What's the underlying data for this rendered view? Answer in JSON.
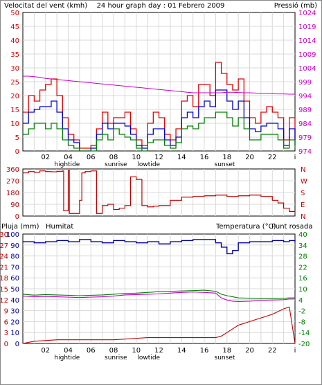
{
  "colors": {
    "wind_gust": "#e00000",
    "wind_avg": "#0000c8",
    "wind_min": "#008000",
    "pressure": "#c800c8",
    "rain": "#c00000",
    "humidity": "#0000a0",
    "temperature": "#008000",
    "dewpoint": "#c800c8",
    "grid": "#d8d8d8",
    "axis": "#000000"
  },
  "header": {
    "left_title": "Velocitat del vent (kmh)",
    "center_title": "24 hour graph day : 01 Febrero 2009",
    "right_title": "Pressió (mb)"
  },
  "wind_chart": {
    "left_ticks": [
      "0",
      "5",
      "10",
      "15",
      "20",
      "25",
      "30",
      "35",
      "40",
      "45",
      "50"
    ],
    "right_ticks": [
      "974",
      "979",
      "984",
      "989",
      "994",
      "999",
      "1004",
      "1009",
      "1014",
      "1019",
      "1024"
    ]
  },
  "direction_chart": {
    "left_ticks": [
      "0",
      "90",
      "180",
      "270",
      "360"
    ],
    "right_labels": [
      "N",
      "E",
      "S",
      "W",
      "N"
    ]
  },
  "lower_header": {
    "rain_label": "Pluja (mm)",
    "humidity_label": "Humitat",
    "temp_label": "Temperatura (°C)",
    "dew_label": "Punt rosada"
  },
  "lower_chart": {
    "humidity_ticks": [
      "0",
      "10",
      "20",
      "30",
      "40",
      "50",
      "60",
      "70",
      "80",
      "90",
      "100"
    ],
    "rain_ticks": [
      "0",
      "3",
      "6",
      "9",
      "12",
      "15",
      "18",
      "21",
      "24",
      "27",
      "30"
    ],
    "temp_ticks": [
      "-20",
      "-14",
      "-8",
      "-2",
      "4",
      "10",
      "16",
      "22",
      "28",
      "34",
      "40"
    ]
  },
  "x_axis": {
    "hour_labels": [
      "02",
      "04",
      "06",
      "08",
      "10",
      "12",
      "14",
      "16",
      "18",
      "20",
      "22",
      "i"
    ],
    "events": [
      {
        "label": "hightide",
        "hour": 3.9
      },
      {
        "label": "sunrise",
        "hour": 8.2
      },
      {
        "label": "lowtide",
        "hour": 11.1
      },
      {
        "label": "sunset",
        "hour": 17.8
      }
    ]
  },
  "chart_data": [
    {
      "type": "line",
      "title": "Velocitat del vent (kmh)",
      "x_hours": [
        0,
        0.5,
        1,
        1.5,
        2,
        2.5,
        3,
        3.5,
        4,
        4.5,
        5,
        5.5,
        6,
        6.5,
        7,
        7.5,
        8,
        8.5,
        9,
        9.5,
        10,
        10.5,
        11,
        11.5,
        12,
        12.5,
        13,
        13.5,
        14,
        14.5,
        15,
        15.5,
        16,
        16.5,
        17,
        17.5,
        18,
        18.5,
        19,
        19.5,
        20,
        20.5,
        21,
        21.5,
        22,
        22.5,
        23,
        23.5,
        24
      ],
      "ylim": [
        0,
        50
      ],
      "y2lim": [
        974,
        1024
      ],
      "series": [
        {
          "name": "gust",
          "axis": "left",
          "values": [
            14,
            20,
            18,
            22,
            24,
            26,
            20,
            12,
            6,
            4,
            1,
            1,
            2,
            8,
            14,
            10,
            12,
            12,
            14,
            8,
            4,
            2,
            10,
            14,
            12,
            6,
            4,
            8,
            18,
            20,
            16,
            24,
            24,
            20,
            32,
            28,
            24,
            22,
            26,
            18,
            12,
            10,
            14,
            16,
            14,
            12,
            4,
            12,
            4
          ]
        },
        {
          "name": "avg",
          "axis": "left",
          "values": [
            10,
            14,
            15,
            16,
            16,
            18,
            14,
            8,
            4,
            3,
            0,
            0,
            1,
            6,
            10,
            8,
            10,
            10,
            9,
            6,
            2,
            1,
            6,
            8,
            8,
            4,
            2,
            5,
            12,
            14,
            12,
            16,
            18,
            16,
            22,
            22,
            18,
            15,
            18,
            12,
            8,
            7,
            9,
            10,
            10,
            8,
            2,
            8,
            2
          ]
        },
        {
          "name": "min",
          "axis": "left",
          "values": [
            6,
            8,
            10,
            10,
            8,
            10,
            8,
            4,
            2,
            1,
            0,
            0,
            0,
            4,
            6,
            4,
            8,
            6,
            5,
            4,
            1,
            0,
            3,
            4,
            4,
            2,
            1,
            3,
            8,
            9,
            8,
            10,
            12,
            12,
            14,
            14,
            12,
            9,
            12,
            8,
            4,
            4,
            6,
            6,
            6,
            4,
            1,
            4,
            1
          ]
        },
        {
          "name": "pressure",
          "axis": "right",
          "values": [
            1001,
            1001,
            1000.8,
            1000.6,
            1000.2,
            1000,
            999.8,
            999.6,
            999.4,
            999.2,
            999,
            998.8,
            998.6,
            998.4,
            998.2,
            998,
            997.8,
            997.6,
            997.4,
            997.2,
            997,
            996.8,
            996.6,
            996.4,
            996.2,
            996,
            995.8,
            995.6,
            995.4,
            995.2,
            995,
            995,
            995,
            995,
            995,
            995,
            995.2,
            995.2,
            995.1,
            995,
            995,
            994.9,
            994.8,
            994.8,
            994.7,
            994.6,
            994.6,
            994.5,
            994.5
          ]
        }
      ]
    },
    {
      "type": "line",
      "title": "wind direction",
      "x_hours": [
        0,
        0.5,
        1,
        1.5,
        2,
        2.5,
        3,
        3.5,
        3.6,
        4,
        4.1,
        4.5,
        5,
        5.2,
        5.5,
        6,
        6.5,
        7,
        7.5,
        8,
        8.5,
        9,
        9.5,
        10,
        10.5,
        11,
        11.5,
        12,
        13,
        14,
        15,
        16,
        17,
        18,
        19,
        20,
        21,
        22,
        22.5,
        23,
        23.5,
        24
      ],
      "ylim": [
        0,
        360
      ],
      "series": [
        {
          "name": "direction",
          "values": [
            330,
            340,
            335,
            345,
            340,
            338,
            342,
            345,
            40,
            350,
            20,
            20,
            120,
            330,
            340,
            345,
            20,
            80,
            90,
            50,
            60,
            80,
            300,
            280,
            80,
            70,
            75,
            80,
            120,
            145,
            150,
            155,
            160,
            150,
            155,
            160,
            150,
            120,
            100,
            60,
            35,
            20
          ]
        }
      ]
    },
    {
      "type": "line",
      "title": "Pluja / Humitat / Temperatura / Punt rosada",
      "x_hours": [
        0,
        1,
        2,
        3,
        4,
        5,
        6,
        7,
        8,
        9,
        10,
        11,
        12,
        13,
        14,
        15,
        16,
        17,
        17.5,
        18,
        18.5,
        19,
        20,
        21,
        22,
        23,
        23.5,
        24
      ],
      "ylim": [
        0,
        100
      ],
      "series": [
        {
          "name": "humidity",
          "axis": "humidity",
          "values": [
            93,
            92,
            93,
            94,
            93,
            95,
            93,
            92,
            94,
            93,
            92,
            93,
            91,
            93,
            94,
            95,
            95,
            92,
            88,
            82,
            85,
            92,
            93,
            93,
            94,
            93,
            94,
            93
          ]
        },
        {
          "name": "temperature",
          "axis": "temperature",
          "values": [
            7,
            6.5,
            6.8,
            6.6,
            6.4,
            6.2,
            6.4,
            6.6,
            7,
            7.4,
            7.6,
            8,
            8.4,
            8.6,
            8.8,
            9,
            9.2,
            8.6,
            7,
            6.2,
            5.6,
            5,
            4.8,
            4.6,
            4.6,
            4.8,
            5,
            5
          ]
        },
        {
          "name": "dewpoint",
          "axis": "temperature",
          "values": [
            6,
            5.6,
            5.8,
            5.6,
            5.4,
            5.2,
            5.4,
            5.6,
            6,
            6.6,
            6.8,
            7,
            7.2,
            7.6,
            8,
            8.2,
            8,
            7.6,
            5,
            3.8,
            3.2,
            3,
            3.2,
            3.6,
            3.8,
            4,
            4.4,
            4.4
          ]
        },
        {
          "name": "rain",
          "axis": "rain",
          "values": [
            0,
            0.6,
            0.8,
            1,
            1,
            1,
            1,
            1,
            1,
            1.2,
            1.4,
            1.6,
            1.6,
            1.6,
            1.6,
            1.6,
            1.6,
            1.6,
            2,
            3,
            4,
            5,
            6,
            7,
            8,
            9.5,
            10,
            0
          ]
        }
      ]
    }
  ]
}
